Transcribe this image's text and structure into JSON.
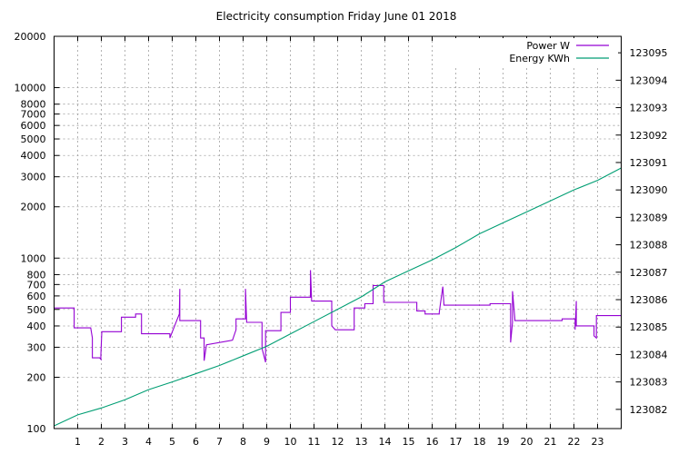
{
  "chart_data": {
    "type": "line",
    "title": "Electricity consumption Friday June 01 2018",
    "x": {
      "range": [
        0,
        24
      ],
      "tick_labels": [
        "1",
        "2",
        "3",
        "4",
        "5",
        "6",
        "7",
        "8",
        "9",
        "10",
        "11",
        "12",
        "13",
        "14",
        "15",
        "16",
        "17",
        "18",
        "19",
        "20",
        "21",
        "22",
        "23"
      ]
    },
    "y_left": {
      "scale": "log",
      "range": [
        100,
        20000
      ],
      "tick_labels": [
        "100",
        "200",
        "300",
        "400",
        "500",
        "600",
        "700",
        "800",
        "1000",
        "2000",
        "3000",
        "4000",
        "5000",
        "6000",
        "7000",
        "8000",
        "10000",
        "20000"
      ]
    },
    "y_right": {
      "range": [
        123081.3,
        123095.6
      ],
      "tick_labels": [
        "123082",
        "123083",
        "123084",
        "123085",
        "123086",
        "123087",
        "123088",
        "123089",
        "123090",
        "123091",
        "123092",
        "123093",
        "123094",
        "123095"
      ]
    },
    "grid": true,
    "legend": "top-right",
    "series": [
      {
        "name": "Power W",
        "axis": "left",
        "color": "#9400d3",
        "x": [
          0,
          0.85,
          0.85,
          1.55,
          1.62,
          1.62,
          1.93,
          1.98,
          1.98,
          2.02,
          2.02,
          2.85,
          2.85,
          3.45,
          3.45,
          3.7,
          3.7,
          4.9,
          4.9,
          5.3,
          5.3,
          5.32,
          5.32,
          6.2,
          6.2,
          6.35,
          6.35,
          6.45,
          6.45,
          7.55,
          7.55,
          7.7,
          7.7,
          8.1,
          8.1,
          8.15,
          8.15,
          8.8,
          8.8,
          8.95,
          8.95,
          9.05,
          9.05,
          9.6,
          9.6,
          10.0,
          10.0,
          10.85,
          10.85,
          10.9,
          10.9,
          11.75,
          11.75,
          11.9,
          11.9,
          12.7,
          12.7,
          13.15,
          13.15,
          13.5,
          13.5,
          13.95,
          13.95,
          14.4,
          14.4,
          15.35,
          15.35,
          15.7,
          15.7,
          16.3,
          16.3,
          16.45,
          16.45,
          16.5,
          16.5,
          17.4,
          17.4,
          18.45,
          18.45,
          19.32,
          19.32,
          19.4,
          19.4,
          19.5,
          19.5,
          21.5,
          21.5,
          22.05,
          22.05,
          22.1,
          22.1,
          22.85,
          22.85,
          22.95,
          22.95,
          24
        ],
        "values": [
          510,
          510,
          390,
          390,
          340,
          260,
          260,
          255,
          270,
          370,
          370,
          370,
          450,
          450,
          470,
          470,
          360,
          360,
          340,
          470,
          470,
          660,
          430,
          430,
          340,
          340,
          250,
          310,
          310,
          330,
          330,
          380,
          440,
          440,
          660,
          420,
          420,
          420,
          295,
          245,
          375,
          375,
          375,
          375,
          480,
          480,
          590,
          590,
          850,
          560,
          560,
          560,
          400,
          380,
          380,
          380,
          510,
          510,
          540,
          540,
          690,
          690,
          550,
          550,
          550,
          550,
          490,
          490,
          470,
          470,
          480,
          680,
          680,
          530,
          530,
          530,
          530,
          530,
          540,
          540,
          320,
          420,
          640,
          440,
          430,
          430,
          440,
          440,
          380,
          560,
          400,
          400,
          350,
          340,
          460,
          460
        ]
      },
      {
        "name": "Energy KWh",
        "axis": "right",
        "color": "#009e73",
        "x": [
          0,
          1,
          2,
          3,
          4,
          5,
          6,
          7,
          8,
          9,
          10,
          11,
          12,
          13,
          14,
          15,
          16,
          17,
          18,
          19,
          20,
          21,
          22,
          23,
          24
        ],
        "values": [
          123081.4,
          123081.8,
          123082.05,
          123082.35,
          123082.72,
          123083.0,
          123083.3,
          123083.6,
          123083.95,
          123084.3,
          123084.75,
          123085.2,
          123085.65,
          123086.1,
          123086.65,
          123087.05,
          123087.45,
          123087.9,
          123088.4,
          123088.8,
          123089.2,
          123089.6,
          123090.0,
          123090.35,
          123090.8
        ]
      }
    ]
  }
}
